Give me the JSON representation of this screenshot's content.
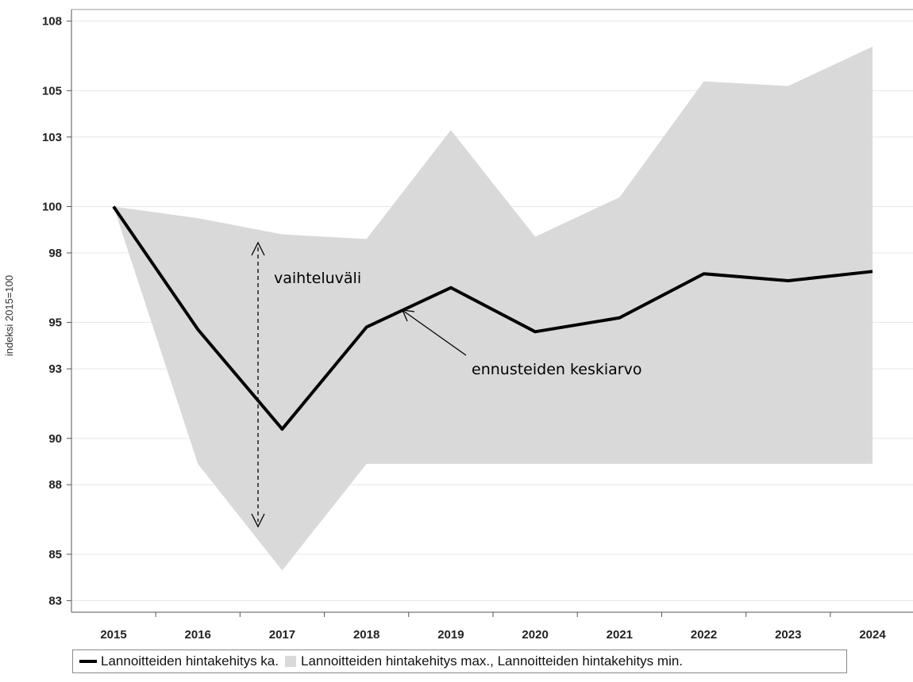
{
  "chart_data": {
    "type": "line",
    "x": [
      "2015",
      "2016",
      "2017",
      "2018",
      "2019",
      "2020",
      "2021",
      "2022",
      "2023",
      "2024"
    ],
    "series": [
      {
        "name": "Lannoitteiden hintakehitys ka.",
        "values": [
          100,
          94.7,
          90.4,
          94.8,
          96.5,
          94.6,
          95.2,
          97.1,
          96.8,
          97.2
        ],
        "color": "#000000"
      },
      {
        "name": "Lannoitteiden hintakehitys max.",
        "values": [
          100,
          99.5,
          98.8,
          98.6,
          103.3,
          98.7,
          100.4,
          105.4,
          105.2,
          106.9
        ]
      },
      {
        "name": "Lannoitteiden hintakehitys min.",
        "values": [
          100,
          88.9,
          84.3,
          88.9,
          88.9,
          88.9,
          88.9,
          88.9,
          88.9,
          88.9
        ]
      }
    ],
    "band_color": "#d9d9d9",
    "ylim": [
      82.5,
      108.5
    ],
    "yticks": [
      83,
      85,
      88,
      90,
      93,
      95,
      98,
      100,
      103,
      105,
      108
    ],
    "ylabel": "indeksi 2015=100",
    "xlabel": "",
    "legend": {
      "position": "bottom",
      "line_label": "Lannoitteiden hintakehitys ka.",
      "band_label": "Lannoitteiden hintakehitys max., Lannoitteiden hintakehitys min."
    },
    "annotations": [
      {
        "text": "vaihteluväli",
        "x": "2017",
        "y": 97
      },
      {
        "text": "ennusteiden keskiarvo",
        "x": "2019",
        "y": 92.5
      }
    ],
    "grid": "horizontal"
  }
}
